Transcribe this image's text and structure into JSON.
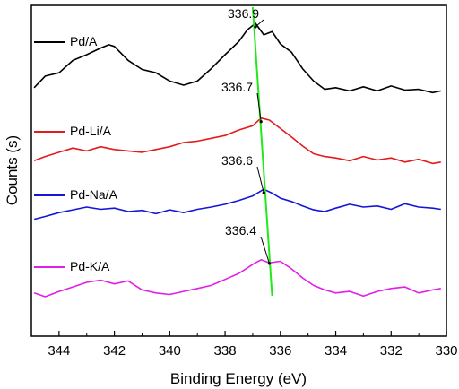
{
  "chart_data": {
    "type": "line",
    "xlabel": "Binding Energy (eV)",
    "ylabel": "Counts (s)",
    "x_reversed": true,
    "xlim": [
      345,
      330
    ],
    "x_ticks": [
      "344",
      "342",
      "340",
      "338",
      "336",
      "334",
      "332",
      "330"
    ],
    "x_tick_values": [
      344,
      342,
      340,
      338,
      336,
      334,
      332,
      330
    ],
    "y_ticks_shown": false,
    "grid": false,
    "legend_placement": "inline, left of each curve",
    "guide_line": {
      "color": "#22e81c",
      "from_x": 337.0,
      "to_x": 336.3
    },
    "series": [
      {
        "name": "Pd/A",
        "color": "#000000",
        "peak_label": "336.9",
        "peak_x": 336.9,
        "x": [
          344.9,
          344.5,
          344.0,
          343.5,
          343.0,
          342.5,
          342.2,
          342.0,
          341.5,
          341.0,
          340.5,
          340.0,
          339.5,
          339.0,
          338.5,
          338.0,
          337.5,
          337.2,
          336.9,
          336.6,
          336.3,
          336.0,
          335.6,
          335.2,
          334.8,
          334.4,
          334.0,
          333.5,
          333.0,
          332.5,
          332.0,
          331.5,
          331.0,
          330.5,
          330.2
        ],
        "y": [
          0.22,
          0.36,
          0.4,
          0.55,
          0.62,
          0.7,
          0.74,
          0.72,
          0.55,
          0.44,
          0.4,
          0.3,
          0.25,
          0.3,
          0.45,
          0.62,
          0.78,
          0.92,
          1.0,
          0.86,
          0.9,
          0.75,
          0.65,
          0.45,
          0.3,
          0.2,
          0.22,
          0.18,
          0.23,
          0.18,
          0.24,
          0.19,
          0.2,
          0.16,
          0.18
        ]
      },
      {
        "name": "Pd-Li/A",
        "color": "#e41a1c",
        "peak_label": "336.7",
        "peak_x": 336.7,
        "x": [
          344.9,
          344.5,
          344.0,
          343.5,
          343.0,
          342.5,
          342.0,
          341.5,
          341.0,
          340.5,
          340.0,
          339.5,
          339.0,
          338.5,
          338.0,
          337.5,
          337.0,
          336.7,
          336.4,
          336.0,
          335.6,
          335.2,
          334.8,
          334.4,
          334.0,
          333.5,
          333.0,
          332.5,
          332.0,
          331.5,
          331.0,
          330.5,
          330.2
        ],
        "y": [
          0.24,
          0.3,
          0.36,
          0.42,
          0.38,
          0.44,
          0.4,
          0.38,
          0.36,
          0.4,
          0.44,
          0.5,
          0.52,
          0.56,
          0.6,
          0.68,
          0.74,
          0.85,
          0.82,
          0.7,
          0.58,
          0.45,
          0.34,
          0.3,
          0.28,
          0.24,
          0.3,
          0.25,
          0.28,
          0.22,
          0.26,
          0.2,
          0.22
        ]
      },
      {
        "name": "Pd-Na/A",
        "color": "#1515d8",
        "peak_label": "336.6",
        "peak_x": 336.6,
        "x": [
          344.9,
          344.5,
          344.0,
          343.5,
          343.0,
          342.5,
          342.0,
          341.5,
          341.0,
          340.5,
          340.0,
          339.5,
          339.0,
          338.5,
          338.0,
          337.5,
          337.0,
          336.6,
          336.3,
          336.0,
          335.6,
          335.2,
          334.8,
          334.4,
          334.0,
          333.5,
          333.0,
          332.5,
          332.0,
          331.5,
          331.0,
          330.5,
          330.2
        ],
        "y": [
          0.28,
          0.33,
          0.4,
          0.45,
          0.5,
          0.46,
          0.48,
          0.42,
          0.44,
          0.38,
          0.45,
          0.4,
          0.46,
          0.5,
          0.55,
          0.62,
          0.7,
          0.82,
          0.75,
          0.66,
          0.6,
          0.52,
          0.45,
          0.42,
          0.48,
          0.55,
          0.5,
          0.52,
          0.46,
          0.56,
          0.5,
          0.48,
          0.46
        ]
      },
      {
        "name": "Pd-K/A",
        "color": "#e21ee8",
        "peak_label": "336.4",
        "peak_x": 336.4,
        "x": [
          344.9,
          344.5,
          344.0,
          343.5,
          343.0,
          342.5,
          342.0,
          341.5,
          341.0,
          340.5,
          340.0,
          339.5,
          339.0,
          338.5,
          338.0,
          337.5,
          337.0,
          336.7,
          336.4,
          336.0,
          335.6,
          335.2,
          334.8,
          334.4,
          334.0,
          333.5,
          333.0,
          332.5,
          332.0,
          331.5,
          331.0,
          330.5,
          330.2
        ],
        "y": [
          0.3,
          0.25,
          0.32,
          0.38,
          0.44,
          0.47,
          0.42,
          0.46,
          0.34,
          0.3,
          0.28,
          0.32,
          0.36,
          0.4,
          0.48,
          0.56,
          0.68,
          0.74,
          0.7,
          0.72,
          0.62,
          0.5,
          0.4,
          0.34,
          0.3,
          0.32,
          0.26,
          0.32,
          0.36,
          0.38,
          0.3,
          0.34,
          0.36
        ]
      }
    ]
  }
}
